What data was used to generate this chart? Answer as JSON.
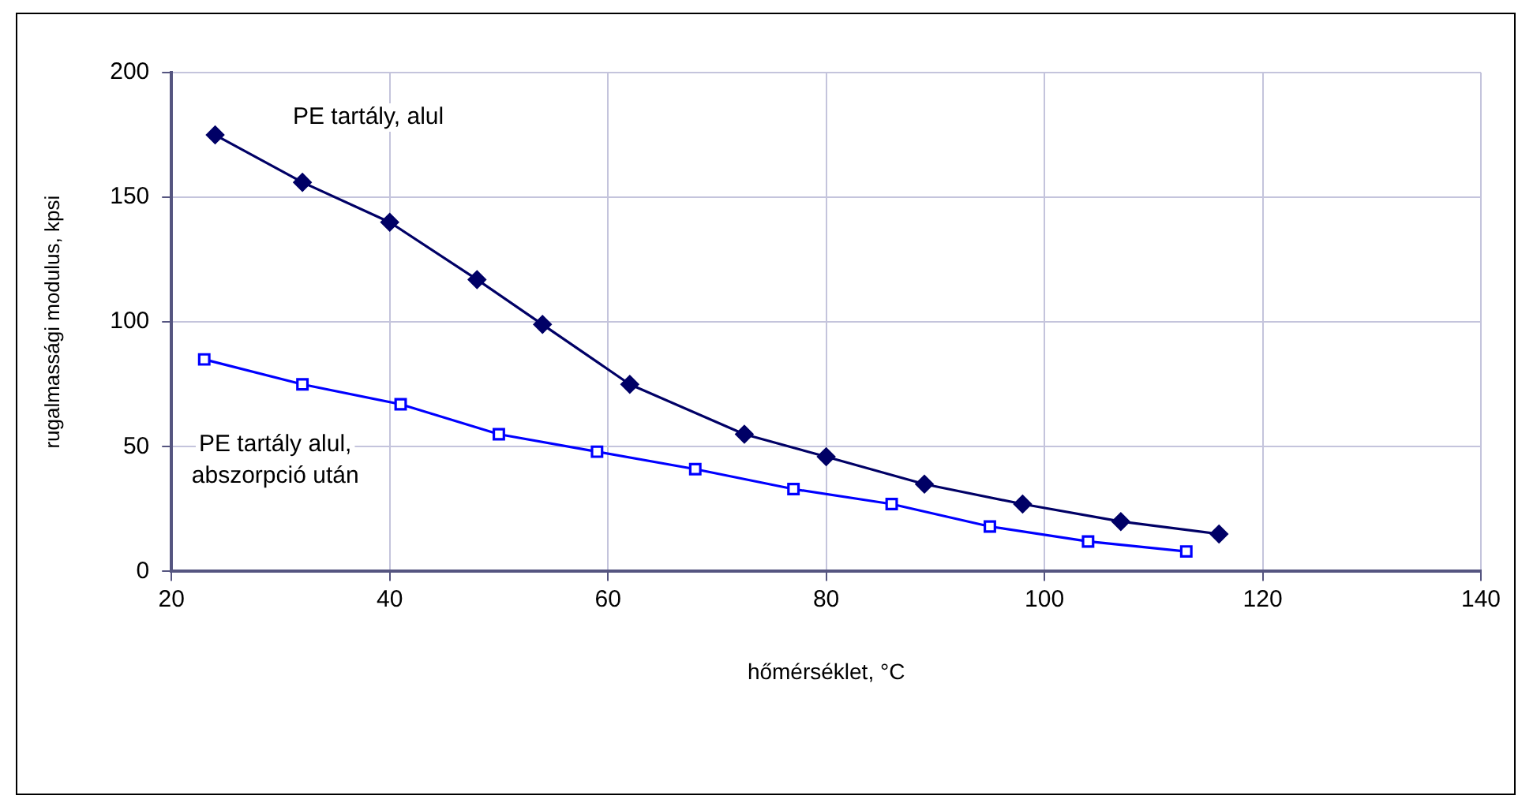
{
  "chart_data": {
    "type": "line",
    "xlabel": "hőmérséklet, °C",
    "ylabel": "rugalmassági modulus, kpsi",
    "series": [
      {
        "name": "PE tartály, alul",
        "color": "#000066",
        "marker": "diamond",
        "x": [
          24,
          32,
          40,
          48,
          54,
          62,
          72.5,
          80,
          89,
          98,
          107,
          116
        ],
        "values": [
          175,
          156,
          140,
          117,
          99,
          75,
          55,
          46,
          35,
          27,
          20,
          15
        ]
      },
      {
        "name": "PE tartály alul,\nabszorpció után",
        "color": "#0000ff",
        "marker": "square",
        "x": [
          23,
          32,
          41,
          50,
          59,
          68,
          77,
          86,
          95,
          104,
          113
        ],
        "values": [
          85,
          75,
          67,
          55,
          48,
          41,
          33,
          27,
          18,
          12,
          8
        ]
      }
    ],
    "xlim": [
      20,
      140
    ],
    "xticks": [
      20,
      40,
      60,
      80,
      100,
      120,
      140
    ],
    "ylim": [
      0,
      200
    ],
    "yticks": [
      0,
      50,
      100,
      150,
      200
    ],
    "grid": true,
    "legend": false,
    "line_style": "solid"
  }
}
